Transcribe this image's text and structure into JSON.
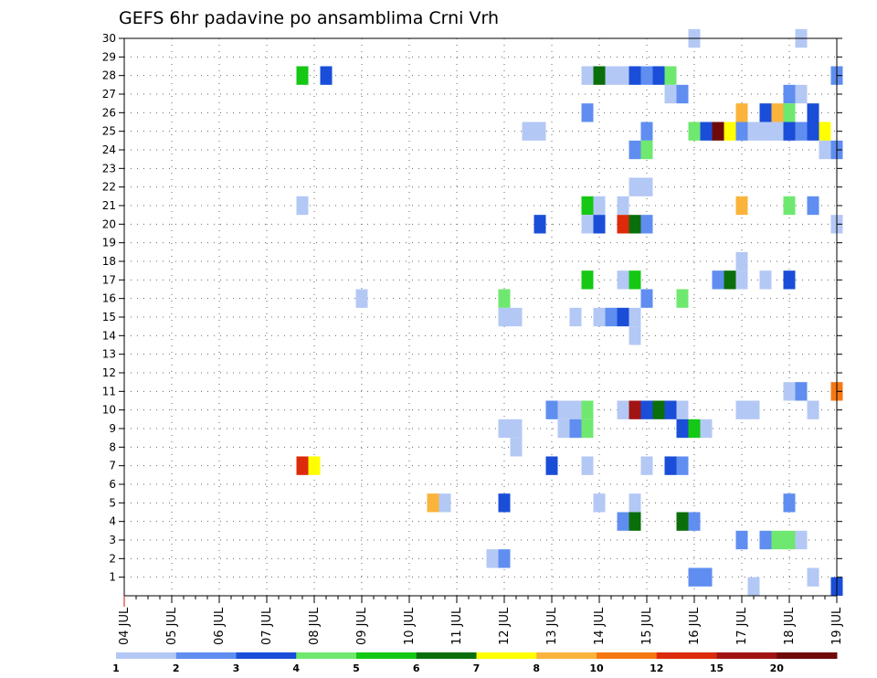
{
  "chart_data": {
    "type": "heatmap",
    "title": "GEFS 6hr padavine po ansamblima Crni Vrh",
    "x_labels": [
      "04 JUL",
      "05 JUL",
      "06 JUL",
      "07 JUL",
      "08 JUL",
      "09 JUL",
      "10 JUL",
      "11 JUL",
      "12 JUL",
      "13 JUL",
      "14 JUL",
      "15 JUL",
      "16 JUL",
      "17 JUL",
      "18 JUL",
      "19 JUL"
    ],
    "y_labels": [
      "1",
      "2",
      "3",
      "4",
      "5",
      "6",
      "7",
      "8",
      "9",
      "10",
      "11",
      "12",
      "13",
      "14",
      "15",
      "16",
      "17",
      "18",
      "19",
      "20",
      "21",
      "22",
      "23",
      "24",
      "25",
      "26",
      "27",
      "28",
      "29",
      "30"
    ],
    "steps_per_day": 4,
    "grid": true,
    "colorbar": {
      "colors": [
        "#b4c8f5",
        "#5f8ef0",
        "#1a4ed8",
        "#6fe86f",
        "#14c814",
        "#0a6e0a",
        "#ffff00",
        "#fab43c",
        "#f57814",
        "#dc2a0a",
        "#a01414",
        "#6e0a0a"
      ],
      "labels": [
        "1",
        "2",
        "3",
        "4",
        "5",
        "6",
        "7",
        "8",
        "10",
        "12",
        "15",
        "20"
      ]
    },
    "cells": [
      {
        "m": 30,
        "s": 48,
        "c": 1
      },
      {
        "m": 30,
        "s": 57,
        "c": 1
      },
      {
        "m": 28,
        "s": 15,
        "c": 5
      },
      {
        "m": 28,
        "s": 17,
        "c": 3
      },
      {
        "m": 28,
        "s": 39,
        "c": 1
      },
      {
        "m": 28,
        "s": 40,
        "c": 6
      },
      {
        "m": 28,
        "s": 41,
        "c": 1
      },
      {
        "m": 28,
        "s": 42,
        "c": 1
      },
      {
        "m": 28,
        "s": 43,
        "c": 3
      },
      {
        "m": 28,
        "s": 44,
        "c": 2
      },
      {
        "m": 28,
        "s": 45,
        "c": 3
      },
      {
        "m": 28,
        "s": 46,
        "c": 4
      },
      {
        "m": 28,
        "s": 60,
        "c": 2
      },
      {
        "m": 27,
        "s": 46,
        "c": 1
      },
      {
        "m": 27,
        "s": 47,
        "c": 2
      },
      {
        "m": 27,
        "s": 56,
        "c": 2
      },
      {
        "m": 27,
        "s": 57,
        "c": 1
      },
      {
        "m": 26,
        "s": 39,
        "c": 2
      },
      {
        "m": 26,
        "s": 52,
        "c": 8
      },
      {
        "m": 26,
        "s": 54,
        "c": 3
      },
      {
        "m": 26,
        "s": 55,
        "c": 8
      },
      {
        "m": 26,
        "s": 56,
        "c": 4
      },
      {
        "m": 26,
        "s": 58,
        "c": 3
      },
      {
        "m": 25,
        "s": 34,
        "c": 1
      },
      {
        "m": 25,
        "s": 35,
        "c": 1
      },
      {
        "m": 25,
        "s": 44,
        "c": 2
      },
      {
        "m": 25,
        "s": 48,
        "c": 4
      },
      {
        "m": 25,
        "s": 49,
        "c": 3
      },
      {
        "m": 25,
        "s": 50,
        "c": 12
      },
      {
        "m": 25,
        "s": 51,
        "c": 7
      },
      {
        "m": 25,
        "s": 52,
        "c": 2
      },
      {
        "m": 25,
        "s": 53,
        "c": 1
      },
      {
        "m": 25,
        "s": 54,
        "c": 1
      },
      {
        "m": 25,
        "s": 55,
        "c": 1
      },
      {
        "m": 25,
        "s": 56,
        "c": 3
      },
      {
        "m": 25,
        "s": 57,
        "c": 2
      },
      {
        "m": 25,
        "s": 58,
        "c": 3
      },
      {
        "m": 25,
        "s": 59,
        "c": 7
      },
      {
        "m": 24,
        "s": 43,
        "c": 2
      },
      {
        "m": 24,
        "s": 44,
        "c": 4
      },
      {
        "m": 24,
        "s": 59,
        "c": 1
      },
      {
        "m": 24,
        "s": 60,
        "c": 2
      },
      {
        "m": 22,
        "s": 43,
        "c": 1
      },
      {
        "m": 22,
        "s": 44,
        "c": 1
      },
      {
        "m": 21,
        "s": 15,
        "c": 1
      },
      {
        "m": 21,
        "s": 39,
        "c": 5
      },
      {
        "m": 21,
        "s": 40,
        "c": 1
      },
      {
        "m": 21,
        "s": 42,
        "c": 1
      },
      {
        "m": 21,
        "s": 52,
        "c": 8
      },
      {
        "m": 21,
        "s": 56,
        "c": 4
      },
      {
        "m": 21,
        "s": 58,
        "c": 2
      },
      {
        "m": 20,
        "s": 35,
        "c": 3
      },
      {
        "m": 20,
        "s": 39,
        "c": 1
      },
      {
        "m": 20,
        "s": 40,
        "c": 3
      },
      {
        "m": 20,
        "s": 42,
        "c": 10
      },
      {
        "m": 20,
        "s": 43,
        "c": 6
      },
      {
        "m": 20,
        "s": 44,
        "c": 2
      },
      {
        "m": 20,
        "s": 60,
        "c": 1
      },
      {
        "m": 18,
        "s": 52,
        "c": 1
      },
      {
        "m": 17,
        "s": 39,
        "c": 5
      },
      {
        "m": 17,
        "s": 42,
        "c": 1
      },
      {
        "m": 17,
        "s": 43,
        "c": 5
      },
      {
        "m": 17,
        "s": 50,
        "c": 2
      },
      {
        "m": 17,
        "s": 51,
        "c": 6
      },
      {
        "m": 17,
        "s": 52,
        "c": 1
      },
      {
        "m": 17,
        "s": 54,
        "c": 1
      },
      {
        "m": 17,
        "s": 56,
        "c": 3
      },
      {
        "m": 16,
        "s": 20,
        "c": 1
      },
      {
        "m": 16,
        "s": 32,
        "c": 4
      },
      {
        "m": 16,
        "s": 44,
        "c": 2
      },
      {
        "m": 16,
        "s": 47,
        "c": 4
      },
      {
        "m": 15,
        "s": 32,
        "c": 1
      },
      {
        "m": 15,
        "s": 33,
        "c": 1
      },
      {
        "m": 15,
        "s": 38,
        "c": 1
      },
      {
        "m": 15,
        "s": 40,
        "c": 1
      },
      {
        "m": 15,
        "s": 41,
        "c": 2
      },
      {
        "m": 15,
        "s": 42,
        "c": 3
      },
      {
        "m": 15,
        "s": 43,
        "c": 1
      },
      {
        "m": 14,
        "s": 43,
        "c": 1
      },
      {
        "m": 11,
        "s": 56,
        "c": 1
      },
      {
        "m": 11,
        "s": 57,
        "c": 2
      },
      {
        "m": 11,
        "s": 60,
        "c": 9
      },
      {
        "m": 10,
        "s": 36,
        "c": 2
      },
      {
        "m": 10,
        "s": 37,
        "c": 1
      },
      {
        "m": 10,
        "s": 38,
        "c": 1
      },
      {
        "m": 10,
        "s": 39,
        "c": 4
      },
      {
        "m": 10,
        "s": 42,
        "c": 1
      },
      {
        "m": 10,
        "s": 43,
        "c": 11
      },
      {
        "m": 10,
        "s": 44,
        "c": 3
      },
      {
        "m": 10,
        "s": 45,
        "c": 6
      },
      {
        "m": 10,
        "s": 46,
        "c": 3
      },
      {
        "m": 10,
        "s": 47,
        "c": 1
      },
      {
        "m": 10,
        "s": 52,
        "c": 1
      },
      {
        "m": 10,
        "s": 53,
        "c": 1
      },
      {
        "m": 10,
        "s": 58,
        "c": 1
      },
      {
        "m": 9,
        "s": 32,
        "c": 1
      },
      {
        "m": 9,
        "s": 33,
        "c": 1
      },
      {
        "m": 9,
        "s": 37,
        "c": 1
      },
      {
        "m": 9,
        "s": 38,
        "c": 2
      },
      {
        "m": 9,
        "s": 39,
        "c": 4
      },
      {
        "m": 9,
        "s": 47,
        "c": 3
      },
      {
        "m": 9,
        "s": 48,
        "c": 5
      },
      {
        "m": 9,
        "s": 49,
        "c": 1
      },
      {
        "m": 8,
        "s": 33,
        "c": 1
      },
      {
        "m": 7,
        "s": 15,
        "c": 10
      },
      {
        "m": 7,
        "s": 16,
        "c": 7
      },
      {
        "m": 7,
        "s": 36,
        "c": 3
      },
      {
        "m": 7,
        "s": 39,
        "c": 1
      },
      {
        "m": 7,
        "s": 44,
        "c": 1
      },
      {
        "m": 7,
        "s": 46,
        "c": 3
      },
      {
        "m": 7,
        "s": 47,
        "c": 2
      },
      {
        "m": 5,
        "s": 26,
        "c": 8
      },
      {
        "m": 5,
        "s": 27,
        "c": 1
      },
      {
        "m": 5,
        "s": 32,
        "c": 3
      },
      {
        "m": 5,
        "s": 40,
        "c": 1
      },
      {
        "m": 5,
        "s": 43,
        "c": 1
      },
      {
        "m": 5,
        "s": 56,
        "c": 2
      },
      {
        "m": 4,
        "s": 42,
        "c": 2
      },
      {
        "m": 4,
        "s": 43,
        "c": 6
      },
      {
        "m": 4,
        "s": 47,
        "c": 6
      },
      {
        "m": 4,
        "s": 48,
        "c": 2
      },
      {
        "m": 3,
        "s": 52,
        "c": 2
      },
      {
        "m": 3,
        "s": 54,
        "c": 2
      },
      {
        "m": 3,
        "s": 55,
        "c": 4
      },
      {
        "m": 3,
        "s": 56,
        "c": 4
      },
      {
        "m": 3,
        "s": 57,
        "c": 1
      },
      {
        "m": 2,
        "s": 31,
        "c": 1
      },
      {
        "m": 2,
        "s": 32,
        "c": 2
      },
      {
        "m": 1,
        "s": 48,
        "c": 2
      },
      {
        "m": 1,
        "s": 49,
        "c": 2
      },
      {
        "m": 1,
        "s": 58,
        "c": 1
      },
      {
        "m": 0.5,
        "s": 53,
        "c": 1
      },
      {
        "m": 0.5,
        "s": 60,
        "c": 3
      }
    ]
  }
}
